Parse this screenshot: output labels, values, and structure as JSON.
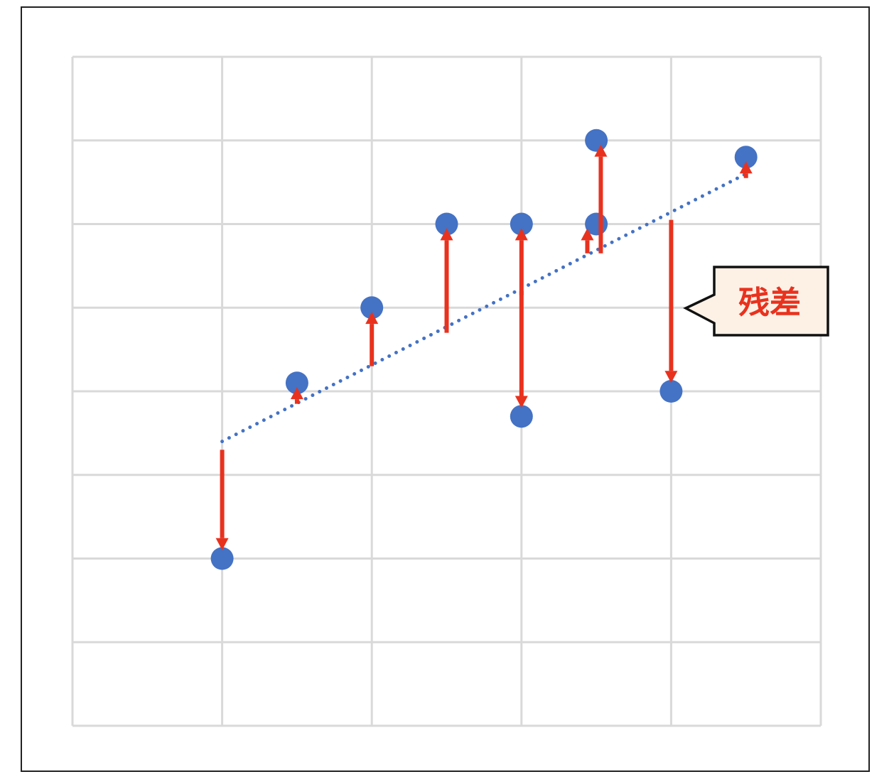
{
  "chart_data": {
    "type": "scatter",
    "title": "",
    "xlabel": "",
    "ylabel": "",
    "xlim": [
      0,
      5
    ],
    "ylim": [
      0,
      8
    ],
    "grid": true,
    "points": [
      {
        "x": 1.0,
        "y": 2.0
      },
      {
        "x": 1.5,
        "y": 4.1
      },
      {
        "x": 2.0,
        "y": 5.0
      },
      {
        "x": 2.5,
        "y": 6.0
      },
      {
        "x": 3.0,
        "y": 6.0
      },
      {
        "x": 3.0,
        "y": 3.7
      },
      {
        "x": 3.5,
        "y": 6.0
      },
      {
        "x": 3.5,
        "y": 7.0
      },
      {
        "x": 4.0,
        "y": 4.0
      },
      {
        "x": 4.5,
        "y": 6.8
      }
    ],
    "trendline": {
      "x": [
        1.0,
        4.5
      ],
      "y": [
        3.4,
        6.6
      ],
      "style": "dotted"
    },
    "residuals": [
      {
        "x": 1.0,
        "from": 3.3,
        "to": 2.1
      },
      {
        "x": 1.5,
        "from": 3.85,
        "to": 4.05
      },
      {
        "x": 2.0,
        "from": 4.3,
        "to": 4.95
      },
      {
        "x": 2.5,
        "from": 4.7,
        "to": 5.95
      },
      {
        "x": 3.0,
        "from": 5.15,
        "to": 5.95
      },
      {
        "x": 3.0,
        "from": 5.2,
        "to": 3.8
      },
      {
        "x": 3.44,
        "from": 5.65,
        "to": 5.95
      },
      {
        "x": 3.53,
        "from": 5.65,
        "to": 6.95
      },
      {
        "x": 4.0,
        "from": 6.05,
        "to": 4.1
      },
      {
        "x": 4.5,
        "from": 6.55,
        "to": 6.75
      }
    ],
    "annotation": {
      "text": "残差"
    }
  },
  "colors": {
    "point": "#4472c4",
    "trendline": "#4472c4",
    "arrow": "#e8321e",
    "grid": "#d9d9d9",
    "callout_fill": "#fdf1e6",
    "callout_text": "#e8321e"
  }
}
